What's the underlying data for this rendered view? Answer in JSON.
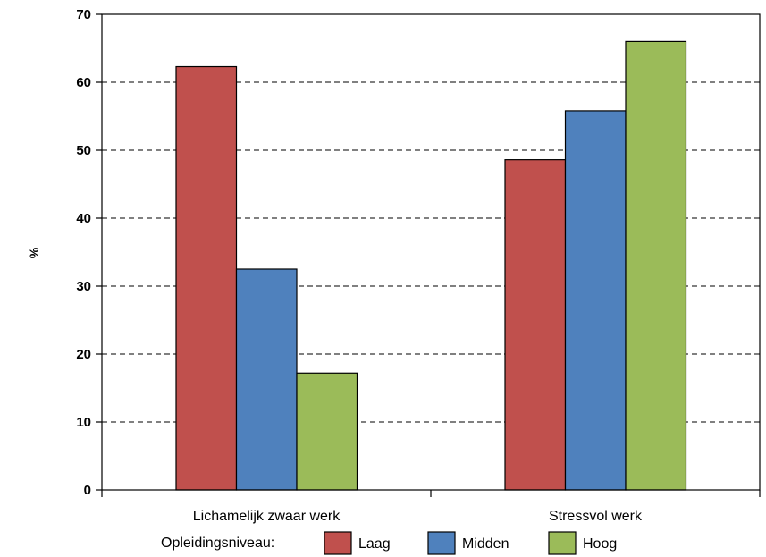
{
  "chart_data": {
    "type": "bar",
    "ylabel": "%",
    "ylim": [
      0,
      70
    ],
    "yticks": [
      0,
      10,
      20,
      30,
      40,
      50,
      60,
      70
    ],
    "grid": "horizontal dashed",
    "categories": [
      "Lichamelijk zwaar werk",
      "Stressvol werk"
    ],
    "legend_title": "Opleidingsniveau:",
    "legend_position": "bottom",
    "series": [
      {
        "name": "Laag",
        "color": "#c0504d",
        "values": [
          62.3,
          48.6
        ]
      },
      {
        "name": "Midden",
        "color": "#4f81bd",
        "values": [
          32.5,
          55.8
        ]
      },
      {
        "name": "Hoog",
        "color": "#9bbb59",
        "values": [
          17.2,
          66.0
        ]
      }
    ]
  }
}
